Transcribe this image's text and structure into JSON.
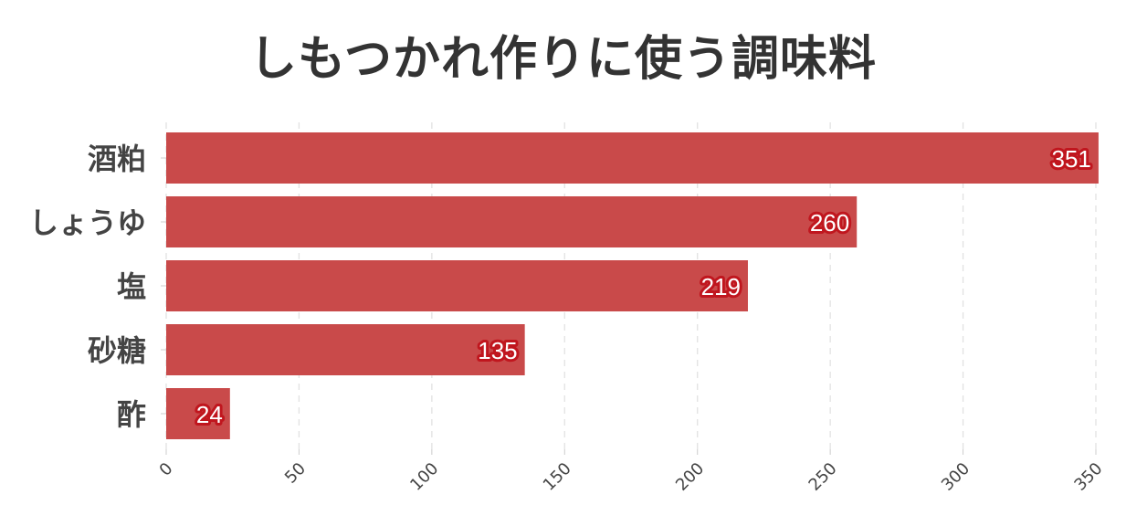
{
  "chart_data": {
    "type": "bar",
    "orientation": "horizontal",
    "title": "しもつかれ作りに使う調味料",
    "xlabel": "",
    "ylabel": "",
    "categories": [
      "酒粕",
      "しょうゆ",
      "塩",
      "砂糖",
      "酢"
    ],
    "values": [
      351,
      260,
      219,
      135,
      24
    ],
    "xlim": [
      0,
      350
    ],
    "x_ticks": [
      "0",
      "50",
      "100",
      "150",
      "200",
      "250",
      "300",
      "350"
    ],
    "grid": true,
    "bar_color": "#c94a4a",
    "label_color": "#ffffff",
    "label_halo_color": "#c0161e"
  }
}
